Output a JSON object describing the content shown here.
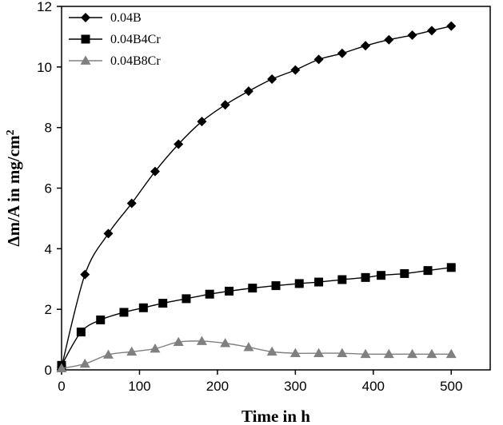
{
  "chart_data": {
    "type": "line",
    "title": "",
    "xlabel": "Time in h",
    "ylabel_main": "Δm/A in mg/cm",
    "ylabel_sup": "2",
    "xlim": [
      0,
      550
    ],
    "ylim": [
      0,
      12
    ],
    "xticks": [
      0,
      100,
      200,
      300,
      400,
      500
    ],
    "yticks": [
      0,
      2,
      4,
      6,
      8,
      10,
      12
    ],
    "grid": false,
    "legend_position": "top-left",
    "series": [
      {
        "name": "0.04B",
        "marker": "diamond",
        "color": "#000000",
        "x": [
          0,
          30,
          60,
          90,
          120,
          150,
          180,
          210,
          240,
          270,
          300,
          330,
          360,
          390,
          420,
          450,
          475,
          500
        ],
        "y": [
          0.1,
          3.15,
          4.5,
          5.5,
          6.55,
          7.45,
          8.2,
          8.75,
          9.2,
          9.6,
          9.9,
          10.25,
          10.45,
          10.7,
          10.9,
          11.05,
          11.2,
          11.35
        ]
      },
      {
        "name": "0.04B4Cr",
        "marker": "square",
        "color": "#000000",
        "x": [
          0,
          25,
          50,
          80,
          105,
          130,
          160,
          190,
          215,
          245,
          275,
          305,
          330,
          360,
          390,
          410,
          440,
          470,
          500
        ],
        "y": [
          0.15,
          1.25,
          1.65,
          1.9,
          2.05,
          2.2,
          2.35,
          2.5,
          2.6,
          2.7,
          2.78,
          2.85,
          2.9,
          2.98,
          3.05,
          3.12,
          3.18,
          3.28,
          3.38
        ]
      },
      {
        "name": "0.04B8Cr",
        "marker": "triangle",
        "color": "#808080",
        "x": [
          0,
          30,
          60,
          90,
          120,
          150,
          180,
          210,
          240,
          270,
          300,
          330,
          360,
          390,
          420,
          450,
          475,
          500
        ],
        "y": [
          0.05,
          0.2,
          0.5,
          0.6,
          0.7,
          0.92,
          0.95,
          0.88,
          0.75,
          0.6,
          0.55,
          0.55,
          0.55,
          0.52,
          0.52,
          0.52,
          0.52,
          0.52
        ]
      }
    ]
  }
}
